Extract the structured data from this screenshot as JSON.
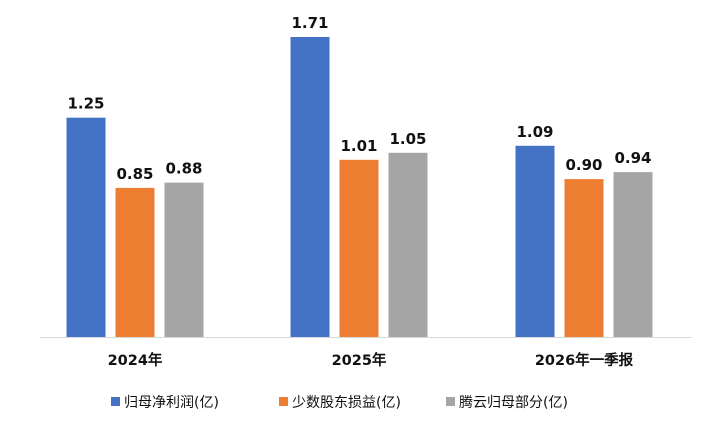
{
  "chart_data": {
    "type": "bar",
    "categories": [
      "2024年",
      "2025年",
      "2026年一季报"
    ],
    "series": [
      {
        "name": "归母净利润(亿)",
        "color": "#4472C4",
        "values": [
          1.25,
          1.71,
          1.09
        ],
        "labels": [
          "1.25",
          "1.71",
          "1.09"
        ]
      },
      {
        "name": "少数股东损益(亿)",
        "color": "#ED7D31",
        "values": [
          0.85,
          1.01,
          0.9
        ],
        "labels": [
          "0.85",
          "1.01",
          "0.90"
        ]
      },
      {
        "name": "腾云归母部分(亿)",
        "color": "#A5A5A5",
        "values": [
          0.88,
          1.05,
          0.94
        ],
        "labels": [
          "0.88",
          "1.05",
          "0.94"
        ]
      }
    ],
    "title": "",
    "xlabel": "",
    "ylabel": "",
    "ylim": [
      0,
      1.71
    ],
    "grid": false,
    "legend": "bottom",
    "axis_color": "#D9D9D9"
  }
}
